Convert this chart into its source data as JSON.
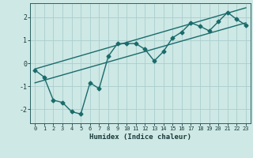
{
  "xlabel": "Humidex (Indice chaleur)",
  "xlim": [
    -0.5,
    23.5
  ],
  "ylim": [
    -2.6,
    2.6
  ],
  "xticks": [
    0,
    1,
    2,
    3,
    4,
    5,
    6,
    7,
    8,
    9,
    10,
    11,
    12,
    13,
    14,
    15,
    16,
    17,
    18,
    19,
    20,
    21,
    22,
    23
  ],
  "yticks": [
    -2,
    -1,
    0,
    1,
    2
  ],
  "background_color": "#cde8e5",
  "grid_color": "#aacece",
  "line_color": "#1a6b6b",
  "line1_x": [
    0,
    1,
    2,
    3,
    4,
    5,
    6,
    7,
    8,
    9,
    10,
    11,
    12,
    13,
    14,
    15,
    16,
    17,
    18,
    19,
    20,
    21,
    22,
    23
  ],
  "line1_y": [
    -0.3,
    -0.6,
    -1.6,
    -1.7,
    -2.1,
    -2.2,
    -0.85,
    -1.1,
    0.3,
    0.85,
    0.85,
    0.85,
    0.6,
    0.1,
    0.5,
    1.1,
    1.35,
    1.75,
    1.6,
    1.4,
    1.8,
    2.2,
    1.9,
    1.65
  ],
  "line2_x": [
    0,
    23
  ],
  "line2_y": [
    -0.85,
    1.75
  ],
  "line3_x": [
    0,
    23
  ],
  "line3_y": [
    -0.25,
    2.4
  ],
  "marker": "D",
  "markersize": 2.5,
  "linewidth": 1.0
}
